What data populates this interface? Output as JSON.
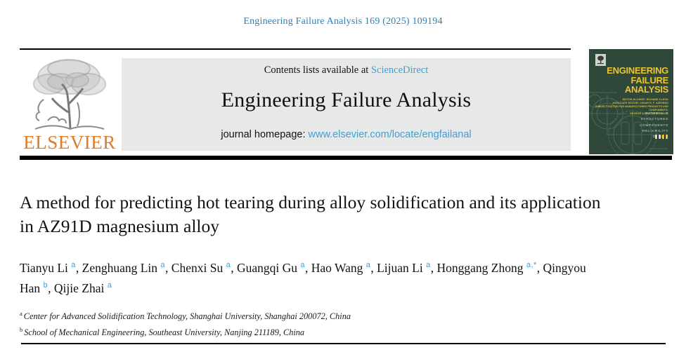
{
  "citation": "Engineering Failure Analysis 169 (2025) 109194",
  "header": {
    "contents_prefix": "Contents lists available at ",
    "sciencedirect_label": "ScienceDirect",
    "journal_title": "Engineering Failure Analysis",
    "homepage_prefix": "journal homepage: ",
    "homepage_url": "www.elsevier.com/locate/engfailanal",
    "elsevier_wordmark": "ELSEVIER"
  },
  "cover": {
    "title_lines": [
      "ENGINEERING",
      "FAILURE",
      "ANALYSIS"
    ],
    "editor_lines": [
      "EDITOR-IN-CHIEF: RICHARD CLEGG",
      "ASSOCIATE EDITOR: CESAR R. F. AZEVEDO",
      "SUBJECT EDITOR FOR MANUFACTURED PRODUCTS AND COMPONENTS:",
      "GEORGE A. PANTAZOPOULOS"
    ],
    "keywords": [
      "MATERIALS",
      "STRUCTURES",
      "COMPONENTS",
      "RELIABILITY",
      "DESIGN"
    ]
  },
  "article": {
    "title": "A method for predicting hot tearing during alloy solidification and its application in AZ91D magnesium alloy",
    "authors": [
      {
        "name": "Tianyu Li",
        "sup": "a"
      },
      {
        "name": "Zenghuang Lin",
        "sup": "a"
      },
      {
        "name": "Chenxi Su",
        "sup": "a"
      },
      {
        "name": "Guangqi Gu",
        "sup": "a"
      },
      {
        "name": "Hao Wang",
        "sup": "a"
      },
      {
        "name": "Lijuan Li",
        "sup": "a"
      },
      {
        "name": "Honggang Zhong",
        "sup": "a,*"
      },
      {
        "name": "Qingyou Han",
        "sup": "b"
      },
      {
        "name": "Qijie Zhai",
        "sup": "a"
      }
    ],
    "affiliations": [
      {
        "sup": "a",
        "text": "Center for Advanced Solidification Technology, Shanghai University, Shanghai 200072, China"
      },
      {
        "sup": "b",
        "text": "School of Mechanical Engineering, Southeast University, Nanjing 211189, China"
      }
    ]
  },
  "colors": {
    "citation_blue": "#2d7eb3",
    "link_blue": "#3ea0d8",
    "elsevier_orange": "#e07b27",
    "cover_green": "#2f4839",
    "cover_yellow": "#e9c431"
  }
}
